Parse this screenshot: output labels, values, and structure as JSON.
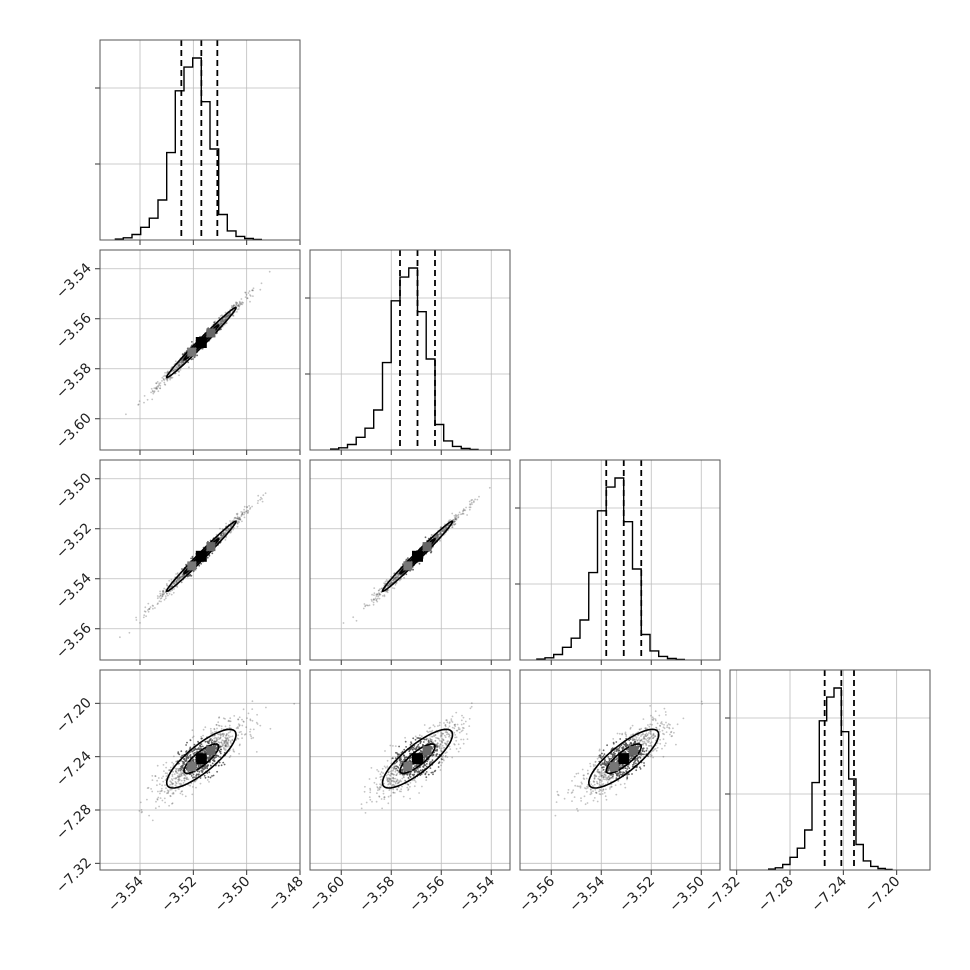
{
  "chart_data": {
    "type": "corner",
    "parameters": [
      {
        "index": 0,
        "range": [
          -3.555,
          -3.48
        ],
        "ticks": [
          "-3.54",
          "-3.52",
          "-3.50",
          "-3.48"
        ],
        "tick_values": [
          -3.54,
          -3.52,
          -3.5,
          -3.48
        ],
        "quantiles": [
          -3.5245,
          -3.517,
          -3.511
        ],
        "median": -3.517,
        "sigma": 0.0065
      },
      {
        "index": 1,
        "range": [
          -3.6125,
          -3.5325
        ],
        "ticks": [
          "-3.60",
          "-3.58",
          "-3.56",
          "-3.54"
        ],
        "tick_values": [
          -3.6,
          -3.58,
          -3.56,
          -3.54
        ],
        "quantiles": [
          -3.5765,
          -3.5695,
          -3.5625
        ],
        "median": -3.5695,
        "sigma": 0.007
      },
      {
        "index": 2,
        "range": [
          -3.5725,
          -3.4925
        ],
        "ticks": [
          "-3.56",
          "-3.54",
          "-3.52",
          "-3.50"
        ],
        "tick_values": [
          -3.56,
          -3.54,
          -3.52,
          -3.5
        ],
        "quantiles": [
          -3.538,
          -3.531,
          -3.524
        ],
        "median": -3.531,
        "sigma": 0.007
      },
      {
        "index": 3,
        "range": [
          -7.325,
          -7.175
        ],
        "ticks": [
          "-7.32",
          "-7.28",
          "-7.24",
          "-7.20"
        ],
        "tick_values": [
          -7.32,
          -7.28,
          -7.24,
          -7.2
        ],
        "quantiles": [
          -7.254,
          -7.2415,
          -7.232
        ],
        "median": -7.2415,
        "sigma": 0.011
      }
    ],
    "y_ticks_left": [
      {
        "row": 1,
        "ticks": [
          "-3.54",
          "-3.56",
          "-3.58",
          "-3.60"
        ],
        "tick_values": [
          -3.54,
          -3.56,
          -3.58,
          -3.6
        ]
      },
      {
        "row": 2,
        "ticks": [
          "-3.50",
          "-3.52",
          "-3.54",
          "-3.56"
        ],
        "tick_values": [
          -3.5,
          -3.52,
          -3.54,
          -3.56
        ]
      },
      {
        "row": 3,
        "ticks": [
          "-7.20",
          "-7.24",
          "-7.28",
          "-7.32"
        ],
        "tick_values": [
          -7.2,
          -7.24,
          -7.28,
          -7.32
        ]
      }
    ],
    "correlations": [
      [
        1.0,
        0.99,
        0.99,
        0.82
      ],
      [
        0.99,
        1.0,
        0.99,
        0.82
      ],
      [
        0.99,
        0.99,
        1.0,
        0.82
      ],
      [
        0.82,
        0.82,
        0.82,
        1.0
      ]
    ],
    "histogram_shape": [
      0.005,
      0.012,
      0.03,
      0.07,
      0.12,
      0.22,
      0.48,
      0.82,
      0.95,
      1.0,
      0.76,
      0.5,
      0.14,
      0.05,
      0.02,
      0.008,
      0.003
    ],
    "histogram_range_sigma": [
      -5.0,
      3.5
    ],
    "contour_levels_sigma": [
      1.0,
      2.0
    ],
    "grid": true,
    "colors": {
      "line": "#000000",
      "points": "#555555",
      "grid": "#bdbdbd"
    }
  }
}
